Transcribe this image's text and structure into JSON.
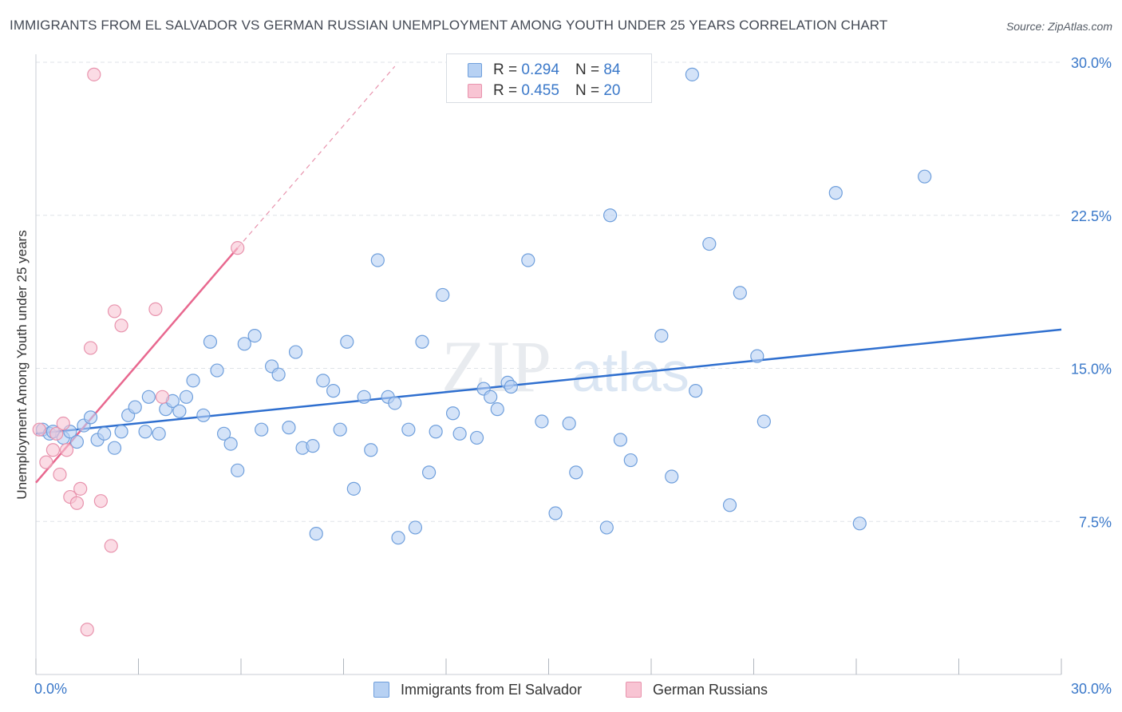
{
  "header": {
    "title": "IMMIGRANTS FROM EL SALVADOR VS GERMAN RUSSIAN UNEMPLOYMENT AMONG YOUTH UNDER 25 YEARS CORRELATION CHART",
    "source": "Source: ZipAtlas.com"
  },
  "colors": {
    "blue_fill": "#b7d1f3",
    "blue_stroke": "#6f9fdc",
    "blue_line": "#2f6fcf",
    "pink_fill": "#f8c4d3",
    "pink_stroke": "#e893ad",
    "pink_line": "#e8688f",
    "tick_label": "#3a78c9",
    "grid": "#dfe3e8"
  },
  "legend_top": {
    "rows": [
      {
        "r_label": "R =",
        "r_value": "0.294",
        "n_label": "N =",
        "n_value": "84"
      },
      {
        "r_label": "R =",
        "r_value": "0.455",
        "n_label": "N =",
        "n_value": "20"
      }
    ]
  },
  "legend_bottom": {
    "items": [
      {
        "label": "Immigrants from El Salvador"
      },
      {
        "label": "German Russians"
      }
    ]
  },
  "watermark": {
    "zip": "ZIP",
    "atlas": "atlas"
  },
  "chart_data": {
    "type": "scatter",
    "ylabel": "Unemployment Among Youth under 25 years",
    "xlim": [
      0,
      30
    ],
    "ylim": [
      0,
      30
    ],
    "x_tick_labels": [
      "0.0%",
      "30.0%"
    ],
    "y_ticks": [
      7.5,
      15.0,
      22.5,
      30.0
    ],
    "y_tick_labels": [
      "7.5%",
      "15.0%",
      "22.5%",
      "30.0%"
    ],
    "grid": true,
    "legend_position": "top-center",
    "series": [
      {
        "name": "Immigrants from El Salvador",
        "color": "#b7d1f3",
        "trend": {
          "x": [
            0,
            30
          ],
          "y": [
            11.8,
            16.9
          ]
        },
        "points": [
          [
            0.2,
            12.0
          ],
          [
            0.4,
            11.8
          ],
          [
            0.5,
            11.9
          ],
          [
            0.8,
            11.6
          ],
          [
            1.0,
            11.9
          ],
          [
            1.2,
            11.4
          ],
          [
            1.4,
            12.2
          ],
          [
            1.6,
            12.6
          ],
          [
            1.8,
            11.5
          ],
          [
            2.0,
            11.8
          ],
          [
            2.3,
            11.1
          ],
          [
            2.5,
            11.9
          ],
          [
            2.7,
            12.7
          ],
          [
            2.9,
            13.1
          ],
          [
            3.2,
            11.9
          ],
          [
            3.3,
            13.6
          ],
          [
            3.6,
            11.8
          ],
          [
            3.8,
            13.0
          ],
          [
            4.0,
            13.4
          ],
          [
            4.2,
            12.9
          ],
          [
            4.4,
            13.6
          ],
          [
            4.6,
            14.4
          ],
          [
            4.9,
            12.7
          ],
          [
            5.1,
            16.3
          ],
          [
            5.3,
            14.9
          ],
          [
            5.5,
            11.8
          ],
          [
            5.7,
            11.3
          ],
          [
            5.9,
            10.0
          ],
          [
            6.1,
            16.2
          ],
          [
            6.4,
            16.6
          ],
          [
            6.6,
            12.0
          ],
          [
            6.9,
            15.1
          ],
          [
            7.1,
            14.7
          ],
          [
            7.4,
            12.1
          ],
          [
            7.6,
            15.8
          ],
          [
            7.8,
            11.1
          ],
          [
            8.1,
            11.2
          ],
          [
            8.2,
            6.9
          ],
          [
            8.4,
            14.4
          ],
          [
            8.7,
            13.9
          ],
          [
            8.9,
            12.0
          ],
          [
            9.1,
            16.3
          ],
          [
            9.3,
            9.1
          ],
          [
            9.6,
            13.6
          ],
          [
            9.8,
            11.0
          ],
          [
            10.0,
            20.3
          ],
          [
            10.3,
            13.6
          ],
          [
            10.5,
            13.3
          ],
          [
            10.6,
            6.7
          ],
          [
            10.9,
            12.0
          ],
          [
            11.1,
            7.2
          ],
          [
            11.3,
            16.3
          ],
          [
            11.5,
            9.9
          ],
          [
            11.7,
            11.9
          ],
          [
            11.9,
            18.6
          ],
          [
            12.2,
            12.8
          ],
          [
            12.4,
            11.8
          ],
          [
            12.9,
            11.6
          ],
          [
            13.1,
            14.0
          ],
          [
            13.3,
            13.6
          ],
          [
            13.5,
            13.0
          ],
          [
            13.8,
            14.3
          ],
          [
            13.9,
            14.1
          ],
          [
            14.4,
            20.3
          ],
          [
            14.8,
            12.4
          ],
          [
            15.2,
            7.9
          ],
          [
            15.6,
            12.3
          ],
          [
            15.8,
            9.9
          ],
          [
            16.7,
            7.2
          ],
          [
            16.8,
            22.5
          ],
          [
            17.1,
            11.5
          ],
          [
            17.4,
            10.5
          ],
          [
            18.3,
            16.6
          ],
          [
            18.6,
            9.7
          ],
          [
            19.2,
            29.4
          ],
          [
            19.3,
            13.9
          ],
          [
            19.7,
            21.1
          ],
          [
            20.3,
            8.3
          ],
          [
            20.6,
            18.7
          ],
          [
            21.1,
            15.6
          ],
          [
            21.3,
            12.4
          ],
          [
            23.4,
            23.6
          ],
          [
            24.1,
            7.4
          ],
          [
            26.0,
            24.4
          ]
        ]
      },
      {
        "name": "German Russians",
        "color": "#f8c4d3",
        "trend": {
          "x": [
            0,
            5.9
          ],
          "y": [
            9.4,
            20.9
          ]
        },
        "trend_extension": {
          "x": [
            5.9,
            10.5
          ],
          "y": [
            20.9,
            29.8
          ]
        },
        "points": [
          [
            0.1,
            12.0
          ],
          [
            0.3,
            10.4
          ],
          [
            0.5,
            11.0
          ],
          [
            0.6,
            11.8
          ],
          [
            0.7,
            9.8
          ],
          [
            0.8,
            12.3
          ],
          [
            0.9,
            11.0
          ],
          [
            1.0,
            8.7
          ],
          [
            1.2,
            8.4
          ],
          [
            1.3,
            9.1
          ],
          [
            1.5,
            2.2
          ],
          [
            1.6,
            16.0
          ],
          [
            1.7,
            29.4
          ],
          [
            1.9,
            8.5
          ],
          [
            2.2,
            6.3
          ],
          [
            2.3,
            17.8
          ],
          [
            2.5,
            17.1
          ],
          [
            3.5,
            17.9
          ],
          [
            3.7,
            13.6
          ],
          [
            5.9,
            20.9
          ]
        ]
      }
    ]
  }
}
